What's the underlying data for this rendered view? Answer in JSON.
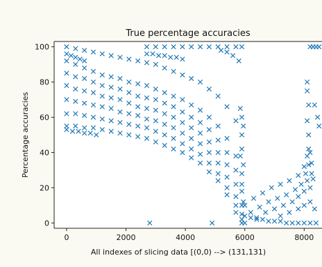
{
  "chart_data": {
    "type": "scatter",
    "title": "True percentage accuracies",
    "xlabel": "All indexes of slicing data [(0,0) --> (131,131)",
    "ylabel": "Percentage accuracies",
    "xlim": [
      -420,
      8600
    ],
    "ylim": [
      -3,
      103
    ],
    "x_ticks": [
      0,
      2000,
      4000,
      6000,
      8000
    ],
    "x_tick_labels": [
      "0",
      "2000",
      "4000",
      "6000",
      "8000"
    ],
    "y_ticks": [
      0,
      20,
      40,
      60,
      80,
      100
    ],
    "y_tick_labels": [
      "0",
      "20",
      "40",
      "60",
      "80",
      "100"
    ],
    "marker": "x",
    "grid": false,
    "legend": "none",
    "color": "#1f77b4",
    "series": [
      {
        "points": [
          [
            0,
            100
          ],
          [
            300,
            99
          ],
          [
            600,
            98
          ],
          [
            900,
            97
          ],
          [
            1200,
            96
          ],
          [
            1500,
            95
          ],
          [
            1800,
            94
          ],
          [
            2100,
            93
          ],
          [
            2400,
            92
          ],
          [
            2700,
            91
          ],
          [
            3000,
            90
          ],
          [
            3300,
            88
          ],
          [
            3600,
            86
          ],
          [
            3900,
            84
          ],
          [
            4200,
            82
          ],
          [
            4500,
            80
          ],
          [
            4800,
            76
          ],
          [
            5100,
            72
          ],
          [
            5400,
            66
          ],
          [
            5700,
            58
          ],
          [
            5900,
            50
          ],
          [
            0,
            92
          ],
          [
            300,
            90
          ],
          [
            600,
            88
          ],
          [
            900,
            86
          ],
          [
            1200,
            84
          ],
          [
            1500,
            83
          ],
          [
            1800,
            82
          ],
          [
            2100,
            80
          ],
          [
            2400,
            79
          ],
          [
            2700,
            78
          ],
          [
            3000,
            76
          ],
          [
            3300,
            74
          ],
          [
            3600,
            72
          ],
          [
            3900,
            70
          ],
          [
            4200,
            67
          ],
          [
            4500,
            64
          ],
          [
            4800,
            60
          ],
          [
            5100,
            55
          ],
          [
            5400,
            48
          ],
          [
            5700,
            38
          ],
          [
            5900,
            28
          ],
          [
            0,
            85
          ],
          [
            300,
            83
          ],
          [
            600,
            82
          ],
          [
            900,
            80
          ],
          [
            1200,
            78
          ],
          [
            1500,
            77
          ],
          [
            1800,
            76
          ],
          [
            2100,
            74
          ],
          [
            2400,
            72
          ],
          [
            2700,
            71
          ],
          [
            3000,
            70
          ],
          [
            3300,
            68
          ],
          [
            3600,
            66
          ],
          [
            3900,
            63
          ],
          [
            4200,
            60
          ],
          [
            4500,
            57
          ],
          [
            4800,
            53
          ],
          [
            5100,
            47
          ],
          [
            5400,
            40
          ],
          [
            5700,
            30
          ],
          [
            5900,
            18
          ],
          [
            0,
            78
          ],
          [
            300,
            76
          ],
          [
            600,
            75
          ],
          [
            900,
            74
          ],
          [
            1200,
            72
          ],
          [
            1500,
            71
          ],
          [
            1800,
            70
          ],
          [
            2100,
            68
          ],
          [
            2400,
            66
          ],
          [
            2700,
            65
          ],
          [
            3000,
            64
          ],
          [
            3300,
            62
          ],
          [
            3600,
            60
          ],
          [
            3900,
            57
          ],
          [
            4200,
            54
          ],
          [
            4500,
            51
          ],
          [
            4800,
            46
          ],
          [
            5100,
            40
          ],
          [
            5400,
            33
          ],
          [
            5700,
            22
          ],
          [
            5900,
            10
          ],
          [
            0,
            70
          ],
          [
            300,
            69
          ],
          [
            600,
            68
          ],
          [
            900,
            67
          ],
          [
            1200,
            66
          ],
          [
            1500,
            65
          ],
          [
            1800,
            63
          ],
          [
            2100,
            62
          ],
          [
            2400,
            61
          ],
          [
            2700,
            59
          ],
          [
            3000,
            58
          ],
          [
            3300,
            56
          ],
          [
            3600,
            54
          ],
          [
            3900,
            51
          ],
          [
            4200,
            48
          ],
          [
            4500,
            45
          ],
          [
            4800,
            40
          ],
          [
            5100,
            34
          ],
          [
            5400,
            26
          ],
          [
            5700,
            15
          ],
          [
            5900,
            5
          ],
          [
            0,
            62
          ],
          [
            300,
            62
          ],
          [
            600,
            61
          ],
          [
            900,
            60
          ],
          [
            1200,
            59
          ],
          [
            1500,
            58
          ],
          [
            1800,
            57
          ],
          [
            2100,
            56
          ],
          [
            2400,
            55
          ],
          [
            2700,
            54
          ],
          [
            3000,
            52
          ],
          [
            3300,
            50
          ],
          [
            3600,
            48
          ],
          [
            3900,
            45
          ],
          [
            4200,
            42
          ],
          [
            4500,
            39
          ],
          [
            4800,
            34
          ],
          [
            5100,
            28
          ],
          [
            5400,
            20
          ],
          [
            5700,
            10
          ],
          [
            5900,
            2
          ],
          [
            0,
            55
          ],
          [
            300,
            55
          ],
          [
            600,
            54
          ],
          [
            900,
            54
          ],
          [
            1200,
            53
          ],
          [
            1500,
            52
          ],
          [
            1800,
            51
          ],
          [
            2100,
            50
          ],
          [
            2400,
            49
          ],
          [
            2700,
            48
          ],
          [
            3000,
            46
          ],
          [
            3300,
            44
          ],
          [
            3600,
            42
          ],
          [
            3900,
            40
          ],
          [
            4200,
            37
          ],
          [
            4500,
            34
          ],
          [
            4800,
            29
          ],
          [
            5100,
            24
          ],
          [
            5400,
            16
          ],
          [
            5700,
            6
          ],
          [
            5900,
            0
          ],
          [
            0,
            53
          ],
          [
            200,
            52
          ],
          [
            400,
            52
          ],
          [
            600,
            51
          ],
          [
            800,
            51
          ],
          [
            1000,
            50
          ],
          [
            0,
            96
          ],
          [
            150,
            95
          ],
          [
            300,
            94
          ],
          [
            450,
            93
          ],
          [
            600,
            92
          ],
          [
            2700,
            100
          ],
          [
            3000,
            100
          ],
          [
            3300,
            100
          ],
          [
            3600,
            100
          ],
          [
            3900,
            100
          ],
          [
            4200,
            100
          ],
          [
            4500,
            100
          ],
          [
            4800,
            100
          ],
          [
            5100,
            100
          ],
          [
            5400,
            100
          ],
          [
            5700,
            100
          ],
          [
            5900,
            100
          ],
          [
            2700,
            96
          ],
          [
            2900,
            96
          ],
          [
            3100,
            95
          ],
          [
            3300,
            95
          ],
          [
            3500,
            94
          ],
          [
            3700,
            94
          ],
          [
            3900,
            93
          ],
          [
            5200,
            98
          ],
          [
            5400,
            97
          ],
          [
            5600,
            95
          ],
          [
            5800,
            92
          ],
          [
            5850,
            65
          ],
          [
            5900,
            60
          ],
          [
            5950,
            55
          ],
          [
            5900,
            42
          ],
          [
            5850,
            38
          ],
          [
            5950,
            33
          ],
          [
            5900,
            22
          ],
          [
            5950,
            12
          ],
          [
            6000,
            4
          ],
          [
            6200,
            3
          ],
          [
            6400,
            2
          ],
          [
            6600,
            2
          ],
          [
            6800,
            1
          ],
          [
            7000,
            1
          ],
          [
            7200,
            1
          ],
          [
            7400,
            0
          ],
          [
            7600,
            0
          ],
          [
            7800,
            0
          ],
          [
            8000,
            0
          ],
          [
            8200,
            0
          ],
          [
            8400,
            0
          ],
          [
            6000,
            10
          ],
          [
            6300,
            14
          ],
          [
            6600,
            17
          ],
          [
            6900,
            20
          ],
          [
            7200,
            22
          ],
          [
            7500,
            24
          ],
          [
            7800,
            27
          ],
          [
            8000,
            32
          ],
          [
            8100,
            38
          ],
          [
            8150,
            42
          ],
          [
            8200,
            40
          ],
          [
            8250,
            34
          ],
          [
            8300,
            25
          ],
          [
            6200,
            6
          ],
          [
            6500,
            9
          ],
          [
            6800,
            12
          ],
          [
            7100,
            14
          ],
          [
            7400,
            16
          ],
          [
            7700,
            19
          ],
          [
            7900,
            22
          ],
          [
            8050,
            28
          ],
          [
            8150,
            33
          ],
          [
            8250,
            28
          ],
          [
            6400,
            3
          ],
          [
            6700,
            6
          ],
          [
            7000,
            8
          ],
          [
            7300,
            10
          ],
          [
            7600,
            12
          ],
          [
            7800,
            15
          ],
          [
            8000,
            18
          ],
          [
            8100,
            24
          ],
          [
            8200,
            20
          ],
          [
            7200,
            4
          ],
          [
            7500,
            6
          ],
          [
            7800,
            8
          ],
          [
            8000,
            10
          ],
          [
            8200,
            12
          ],
          [
            8350,
            8
          ],
          [
            8100,
            80
          ],
          [
            8100,
            75
          ],
          [
            8150,
            67
          ],
          [
            8100,
            58
          ],
          [
            8150,
            50
          ],
          [
            8200,
            100
          ],
          [
            8300,
            100
          ],
          [
            8400,
            100
          ],
          [
            8500,
            100
          ],
          [
            8350,
            67
          ],
          [
            8450,
            60
          ],
          [
            8500,
            55
          ],
          [
            2800,
            0
          ],
          [
            4900,
            0
          ],
          [
            6000,
            0
          ]
        ]
      }
    ]
  }
}
